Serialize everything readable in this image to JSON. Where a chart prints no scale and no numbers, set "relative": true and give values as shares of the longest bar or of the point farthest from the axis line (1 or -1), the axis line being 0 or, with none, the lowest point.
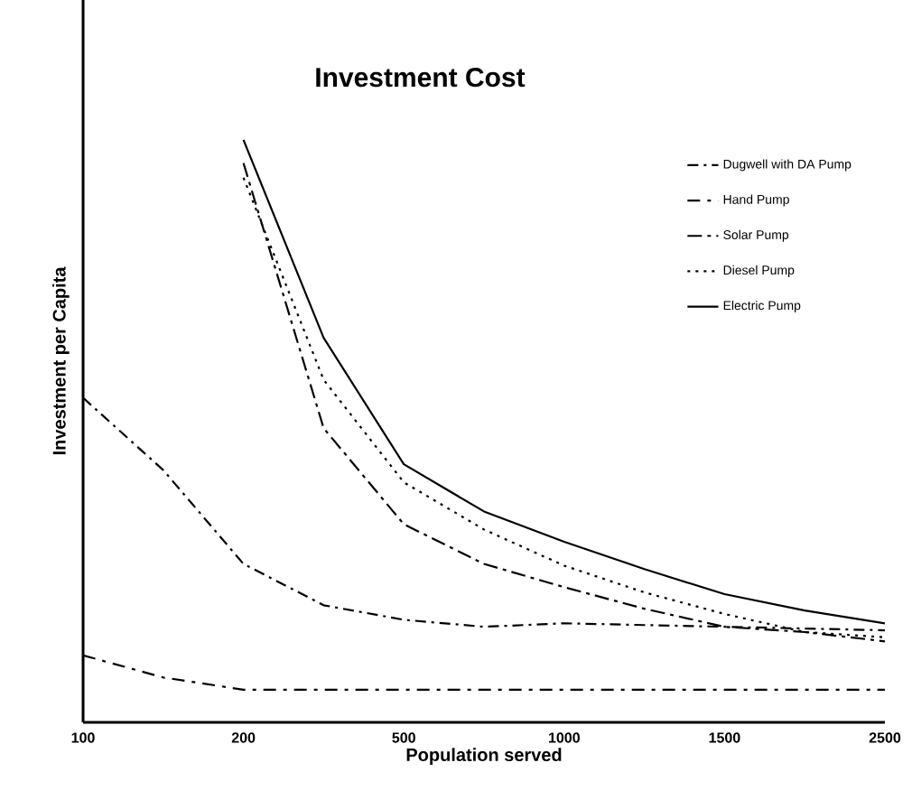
{
  "chart_data": {
    "type": "line",
    "title": "Investment Cost",
    "xlabel": "Population served",
    "ylabel": "Investment per Capita",
    "relative": true,
    "categories": [
      "100",
      null,
      "200",
      null,
      "500",
      null,
      "1000",
      null,
      "1500",
      null,
      "2500"
    ],
    "legend": "top right",
    "grid": false,
    "marker": "none",
    "series": [
      {
        "name": "Dugwell with DA Pump",
        "color": "#000000",
        "line_style": "dashed",
        "values": [
          0.557,
          0.433,
          0.272,
          0.201,
          0.176,
          0.164,
          0.17,
          0.167,
          0.164,
          0.161,
          0.158
        ]
      },
      {
        "name": "Hand Pump",
        "color": "#000000",
        "line_style": "dashed",
        "values": [
          0.115,
          0.077,
          0.056,
          0.056,
          0.056,
          0.056,
          0.056,
          0.056,
          0.056,
          0.056,
          0.056
        ]
      },
      {
        "name": "Solar Pump",
        "color": "#000000",
        "line_style": "dashed",
        "values": [
          null,
          null,
          0.96,
          0.505,
          0.34,
          0.272,
          0.232,
          0.195,
          0.164,
          0.155,
          0.139
        ]
      },
      {
        "name": "Diesel Pump",
        "color": "#000000",
        "line_style": "dotted",
        "values": [
          null,
          null,
          0.935,
          0.588,
          0.412,
          0.331,
          0.269,
          0.223,
          0.186,
          0.155,
          0.146
        ]
      },
      {
        "name": "Electric Pump",
        "color": "#000000",
        "line_style": "solid",
        "values": [
          null,
          null,
          1.0,
          0.66,
          0.443,
          0.362,
          0.31,
          0.263,
          0.22,
          0.192,
          0.17
        ]
      }
    ]
  }
}
